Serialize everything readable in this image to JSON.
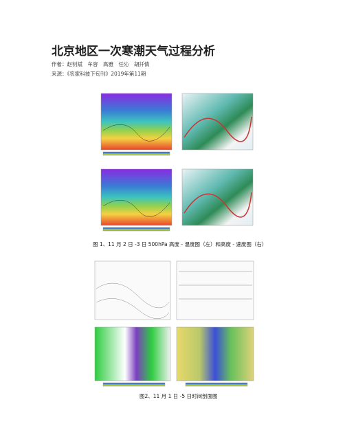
{
  "header": {
    "title": "北京地区一次寒潮天气过程分析",
    "author": "作者：赵钊斌　牟容　高雅　任沁　胡扦倩",
    "source": "来源：《农家科技下旬刊》2019年第11期"
  },
  "figures": [
    {
      "caption": "图 1、11 月 2 日 -3 日 500hPa 高度 - 温度图（左）和高度 - 速度图（右）"
    },
    {
      "caption": "图2、11 月 1 日 -5 日时间剖面图"
    }
  ]
}
